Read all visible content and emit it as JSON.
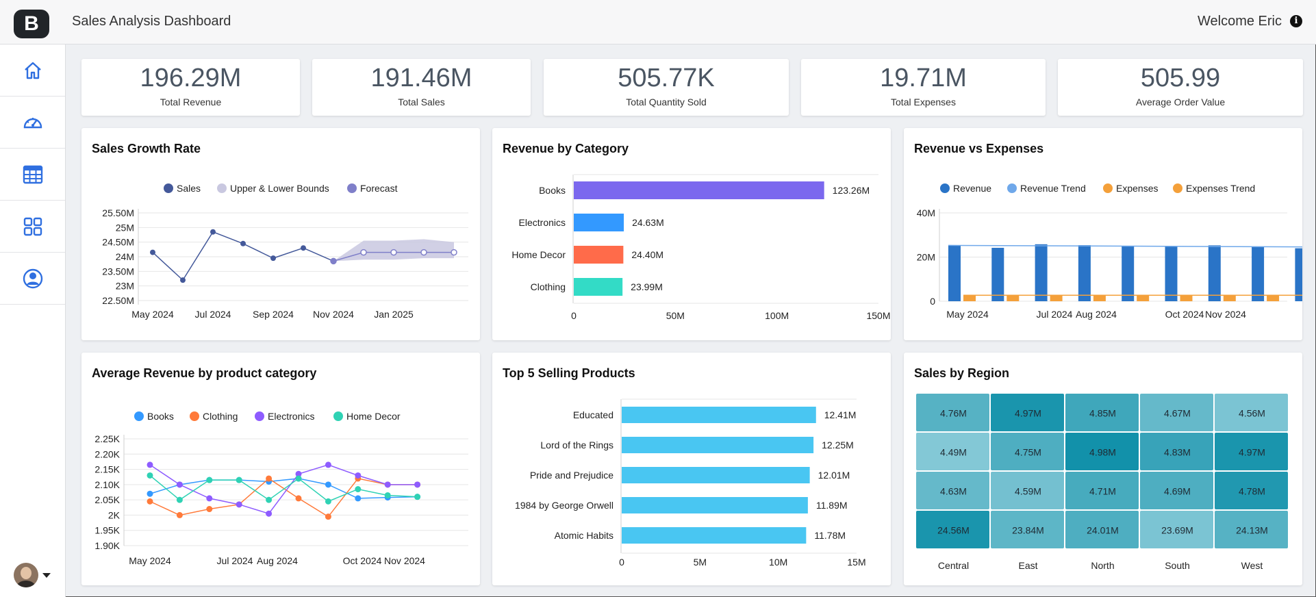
{
  "header": {
    "title": "Sales Analysis Dashboard",
    "welcome": "Welcome Eric",
    "logo_letter": "B"
  },
  "sidebar": {
    "items": [
      {
        "icon": "home-icon"
      },
      {
        "icon": "dashboard-gauge-icon"
      },
      {
        "icon": "table-icon"
      },
      {
        "icon": "grid-icon"
      },
      {
        "icon": "user-circle-icon"
      }
    ]
  },
  "kpis": [
    {
      "value": "196.29M",
      "label": "Total Revenue"
    },
    {
      "value": "191.46M",
      "label": "Total Sales"
    },
    {
      "value": "505.77K",
      "label": "Total Quantity Sold"
    },
    {
      "value": "19.71M",
      "label": "Total Expenses"
    },
    {
      "value": "505.99",
      "label": "Average Order Value"
    }
  ],
  "colors": {
    "accent": "#2f6fe0",
    "sales": "#44599a",
    "bounds": "#c9c8e0",
    "forecast": "#7f7fc9"
  },
  "chart_data": [
    {
      "id": "sales-growth",
      "type": "line",
      "title": "Sales Growth Rate",
      "legend": [
        "Sales",
        "Upper & Lower Bounds",
        "Forecast"
      ],
      "x_labels": [
        "May 2024",
        "Jul 2024",
        "Sep 2024",
        "Nov 2024",
        "Jan 2025"
      ],
      "y_ticks": [
        "25.50M",
        "25M",
        "24.50M",
        "24M",
        "23.50M",
        "23M",
        "22.50M"
      ],
      "ylim": [
        22.5,
        25.5
      ],
      "sales": [
        24.15,
        23.2,
        24.85,
        24.45,
        23.95,
        24.3,
        23.85
      ],
      "forecast": [
        23.85,
        24.15,
        24.15,
        24.15,
        24.15
      ],
      "upper": [
        23.85,
        24.55,
        24.55,
        24.6,
        24.5
      ],
      "lower": [
        23.85,
        23.9,
        23.9,
        23.95,
        23.95
      ]
    },
    {
      "id": "revenue-by-category",
      "type": "bar",
      "title": "Revenue by Category",
      "categories": [
        "Books",
        "Electronics",
        "Home Decor",
        "Clothing"
      ],
      "values": [
        123.26,
        24.63,
        24.4,
        23.99
      ],
      "labels": [
        "123.26M",
        "24.63M",
        "24.40M",
        "23.99M"
      ],
      "colors": [
        "#7b68ee",
        "#3399ff",
        "#ff6b4a",
        "#33dbc6"
      ],
      "x_ticks": [
        "0",
        "50M",
        "100M",
        "150M"
      ],
      "xlim": [
        0,
        150
      ]
    },
    {
      "id": "revenue-vs-expenses",
      "type": "bar",
      "title": "Revenue vs Expenses",
      "legend": [
        "Revenue",
        "Revenue Trend",
        "Expenses",
        "Expenses Trend"
      ],
      "x_labels": [
        "May 2024",
        "Jul 2024",
        "Aug 2024",
        "Oct 2024",
        "Nov 2024"
      ],
      "y_ticks": [
        "40M",
        "20M",
        "0"
      ],
      "ylim": [
        0,
        40
      ],
      "revenue": [
        25.3,
        24.2,
        25.8,
        25.4,
        25.0,
        24.9,
        25.3,
        24.6,
        24.0
      ],
      "expenses": [
        2.7,
        2.6,
        2.8,
        2.7,
        2.6,
        2.7,
        2.6,
        2.8,
        2.7
      ],
      "revenue_trend": [
        25.3,
        24.6
      ],
      "expenses_trend": [
        2.7,
        2.7
      ]
    },
    {
      "id": "avg-revenue-by-category",
      "type": "line",
      "title": "Average Revenue by product category",
      "legend": [
        "Books",
        "Clothing",
        "Electronics",
        "Home Decor"
      ],
      "x_labels": [
        "May 2024",
        "Jul 2024",
        "Aug 2024",
        "Oct 2024",
        "Nov 2024"
      ],
      "y_ticks": [
        "2.25K",
        "2.20K",
        "2.15K",
        "2.10K",
        "2.05K",
        "2K",
        "1.95K",
        "1.90K"
      ],
      "ylim": [
        1.9,
        2.25
      ],
      "series": [
        {
          "name": "Books",
          "color": "#3399ff",
          "values": [
            2.07,
            2.1,
            2.115,
            2.115,
            2.11,
            2.12,
            2.1,
            2.055,
            2.058,
            2.06
          ]
        },
        {
          "name": "Clothing",
          "color": "#ff7a3a",
          "values": [
            2.045,
            2.0,
            2.02,
            2.035,
            2.12,
            2.055,
            1.995,
            2.12,
            2.1,
            2.1
          ]
        },
        {
          "name": "Electronics",
          "color": "#8e5cff",
          "values": [
            2.165,
            2.1,
            2.055,
            2.035,
            2.005,
            2.135,
            2.165,
            2.13,
            2.1,
            2.1
          ]
        },
        {
          "name": "Home Decor",
          "color": "#2fd2b4",
          "values": [
            2.13,
            2.05,
            2.115,
            2.115,
            2.05,
            2.12,
            2.045,
            2.085,
            2.065,
            2.06
          ]
        }
      ]
    },
    {
      "id": "top-5-products",
      "type": "bar",
      "title": "Top 5 Selling Products",
      "categories": [
        "Educated",
        "Lord of the Rings",
        "Pride and Prejudice",
        "1984 by George Orwell",
        "Atomic Habits"
      ],
      "values": [
        12.41,
        12.25,
        12.01,
        11.89,
        11.78
      ],
      "labels": [
        "12.41M",
        "12.25M",
        "12.01M",
        "11.89M",
        "11.78M"
      ],
      "x_ticks": [
        "0",
        "5M",
        "10M",
        "15M"
      ],
      "xlim": [
        0,
        15
      ]
    },
    {
      "id": "sales-by-region",
      "type": "heatmap",
      "title": "Sales by Region",
      "columns": [
        "Central",
        "East",
        "North",
        "South",
        "West"
      ],
      "cells": [
        [
          "4.76M",
          "4.97M",
          "4.85M",
          "4.67M",
          "4.56M"
        ],
        [
          "4.49M",
          "4.75M",
          "4.98M",
          "4.83M",
          "4.97M"
        ],
        [
          "4.63M",
          "4.59M",
          "4.71M",
          "4.69M",
          "4.78M"
        ],
        [
          "24.56M",
          "23.84M",
          "24.01M",
          "23.69M",
          "24.13M"
        ]
      ],
      "levels": [
        [
          0.55,
          0.95,
          0.7,
          0.45,
          0.3
        ],
        [
          0.25,
          0.6,
          1.0,
          0.75,
          0.95
        ],
        [
          0.45,
          0.35,
          0.65,
          0.6,
          0.9
        ],
        [
          0.95,
          0.5,
          0.6,
          0.3,
          0.55
        ]
      ]
    }
  ]
}
